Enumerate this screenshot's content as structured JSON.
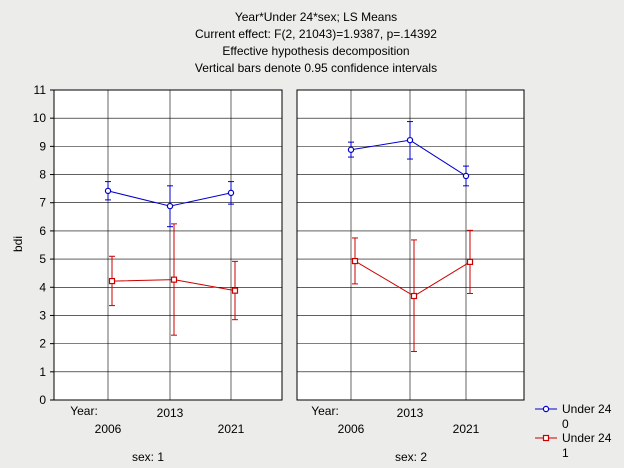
{
  "chart_data": {
    "type": "line",
    "title_lines": [
      "Year*Under 24*sex; LS Means",
      "Current effect: F(2, 21043)=1.9387, p=.14392",
      "Effective hypothesis decomposition",
      "Vertical bars denote 0.95 confidence intervals"
    ],
    "ylabel": "bdi",
    "ylim": [
      0,
      11
    ],
    "yticks": [
      "0",
      "1",
      "2",
      "3",
      "4",
      "5",
      "6",
      "7",
      "8",
      "9",
      "10",
      "11"
    ],
    "grid": true,
    "x_axis_name": "Year:",
    "categories": [
      "2006",
      "2013",
      "2021"
    ],
    "panels": [
      {
        "label": "sex: 1",
        "series": [
          {
            "name": "0",
            "color": "#0000cc",
            "marker": "circle",
            "values": [
              7.42,
              6.88,
              7.35
            ],
            "ci_low": [
              7.1,
              6.15,
              6.95
            ],
            "ci_high": [
              7.75,
              7.6,
              7.75
            ]
          },
          {
            "name": "1",
            "color": "#cc0000",
            "marker": "square",
            "values": [
              4.22,
              4.27,
              3.88
            ],
            "ci_low": [
              3.35,
              2.3,
              2.85
            ],
            "ci_high": [
              5.1,
              6.25,
              4.92
            ]
          }
        ]
      },
      {
        "label": "sex: 2",
        "series": [
          {
            "name": "0",
            "color": "#0000cc",
            "marker": "circle",
            "values": [
              8.88,
              9.22,
              7.95
            ],
            "ci_low": [
              8.62,
              8.55,
              7.6
            ],
            "ci_high": [
              9.15,
              9.88,
              8.3
            ]
          },
          {
            "name": "1",
            "color": "#cc0000",
            "marker": "square",
            "values": [
              4.93,
              3.69,
              4.9
            ],
            "ci_low": [
              4.12,
              1.72,
              3.78
            ],
            "ci_high": [
              5.75,
              5.68,
              6.02
            ]
          }
        ]
      }
    ],
    "legend": {
      "title": "Under 24",
      "position": "bottom-right",
      "entries": [
        {
          "label": "0",
          "color": "#0000cc",
          "marker": "circle"
        },
        {
          "label": "1",
          "color": "#cc0000",
          "marker": "square"
        }
      ]
    }
  }
}
